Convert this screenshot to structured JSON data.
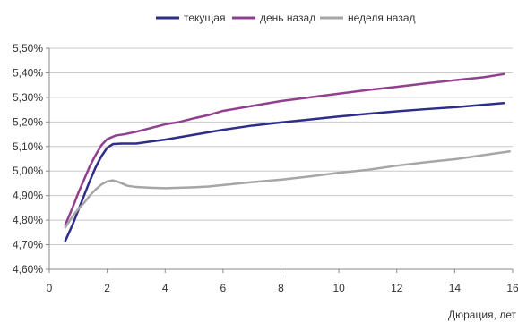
{
  "chart_data": {
    "type": "line",
    "xlabel": "Дюрация, лет",
    "ylabel": "",
    "xlim": [
      0,
      16
    ],
    "ylim": [
      4.6,
      5.5
    ],
    "x_ticks": [
      0,
      2,
      4,
      6,
      8,
      10,
      12,
      14,
      16
    ],
    "x_tick_labels": [
      "0",
      "2",
      "4",
      "6",
      "8",
      "10",
      "12",
      "14",
      "16"
    ],
    "y_ticks": [
      4.6,
      4.7,
      4.8,
      4.9,
      5.0,
      5.1,
      5.2,
      5.3,
      5.4,
      5.5
    ],
    "y_tick_labels": [
      "4,60%",
      "4,70%",
      "4,80%",
      "4,90%",
      "5,00%",
      "5,10%",
      "5,20%",
      "5,30%",
      "5,40%",
      "5,50%"
    ],
    "grid": "horizontal",
    "legend_position": "top",
    "series": [
      {
        "name": "текущая",
        "color": "#2e2e8a",
        "points": [
          [
            0.55,
            4.715
          ],
          [
            0.8,
            4.78
          ],
          [
            1.0,
            4.84
          ],
          [
            1.2,
            4.9
          ],
          [
            1.4,
            4.96
          ],
          [
            1.6,
            5.015
          ],
          [
            1.8,
            5.06
          ],
          [
            2.0,
            5.095
          ],
          [
            2.2,
            5.11
          ],
          [
            2.5,
            5.112
          ],
          [
            3.0,
            5.112
          ],
          [
            3.5,
            5.12
          ],
          [
            4.0,
            5.128
          ],
          [
            4.5,
            5.138
          ],
          [
            5.0,
            5.148
          ],
          [
            5.5,
            5.158
          ],
          [
            6.0,
            5.168
          ],
          [
            7.0,
            5.185
          ],
          [
            8.0,
            5.198
          ],
          [
            9.0,
            5.21
          ],
          [
            10.0,
            5.222
          ],
          [
            11.0,
            5.233
          ],
          [
            12.0,
            5.243
          ],
          [
            13.0,
            5.252
          ],
          [
            14.0,
            5.26
          ],
          [
            15.0,
            5.27
          ],
          [
            15.7,
            5.277
          ]
        ]
      },
      {
        "name": "день назад",
        "color": "#913f8f",
        "points": [
          [
            0.55,
            4.78
          ],
          [
            0.8,
            4.85
          ],
          [
            1.0,
            4.91
          ],
          [
            1.2,
            4.965
          ],
          [
            1.4,
            5.02
          ],
          [
            1.6,
            5.065
          ],
          [
            1.8,
            5.105
          ],
          [
            2.0,
            5.13
          ],
          [
            2.3,
            5.145
          ],
          [
            2.6,
            5.15
          ],
          [
            3.0,
            5.16
          ],
          [
            3.5,
            5.175
          ],
          [
            4.0,
            5.19
          ],
          [
            4.5,
            5.2
          ],
          [
            5.0,
            5.215
          ],
          [
            5.5,
            5.228
          ],
          [
            6.0,
            5.245
          ],
          [
            7.0,
            5.265
          ],
          [
            8.0,
            5.285
          ],
          [
            9.0,
            5.3
          ],
          [
            10.0,
            5.315
          ],
          [
            11.0,
            5.33
          ],
          [
            12.0,
            5.343
          ],
          [
            13.0,
            5.357
          ],
          [
            14.0,
            5.37
          ],
          [
            15.0,
            5.382
          ],
          [
            15.7,
            5.395
          ]
        ]
      },
      {
        "name": "неделя назад",
        "color": "#a6a6a6",
        "points": [
          [
            0.55,
            4.77
          ],
          [
            0.8,
            4.815
          ],
          [
            1.0,
            4.845
          ],
          [
            1.2,
            4.87
          ],
          [
            1.4,
            4.9
          ],
          [
            1.6,
            4.925
          ],
          [
            1.8,
            4.945
          ],
          [
            2.0,
            4.958
          ],
          [
            2.2,
            4.962
          ],
          [
            2.4,
            4.955
          ],
          [
            2.7,
            4.94
          ],
          [
            3.0,
            4.935
          ],
          [
            3.5,
            4.932
          ],
          [
            4.0,
            4.93
          ],
          [
            4.5,
            4.932
          ],
          [
            5.0,
            4.934
          ],
          [
            5.5,
            4.937
          ],
          [
            6.0,
            4.943
          ],
          [
            7.0,
            4.955
          ],
          [
            8.0,
            4.965
          ],
          [
            9.0,
            4.978
          ],
          [
            10.0,
            4.993
          ],
          [
            11.0,
            5.005
          ],
          [
            12.0,
            5.022
          ],
          [
            13.0,
            5.036
          ],
          [
            14.0,
            5.048
          ],
          [
            15.0,
            5.065
          ],
          [
            15.9,
            5.08
          ]
        ]
      }
    ]
  }
}
